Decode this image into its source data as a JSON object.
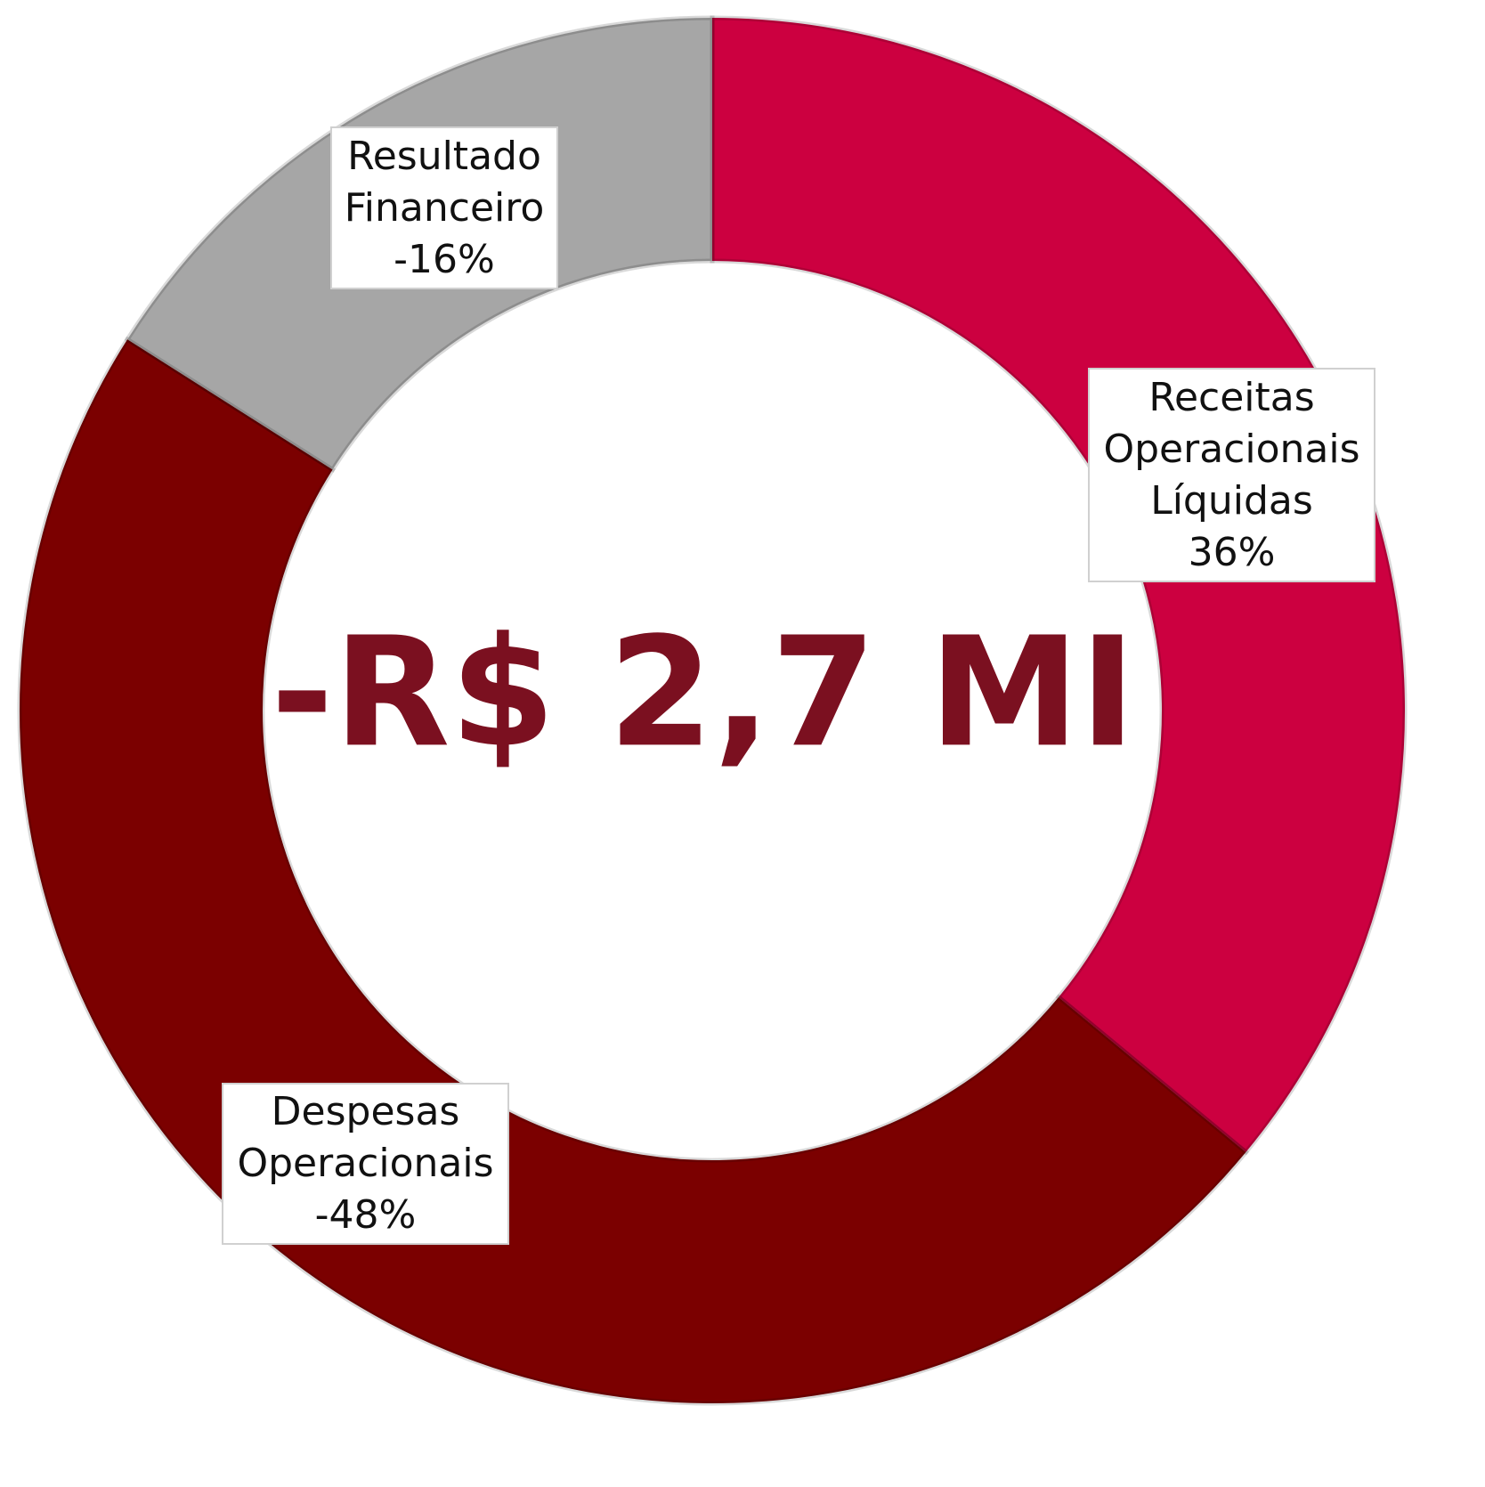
{
  "chart_data": {
    "type": "donut",
    "categories": [
      "Receitas Operacionais Líquidas",
      "Despesas Operacionais",
      "Resultado Financeiro"
    ],
    "values": [
      36,
      -48,
      -16
    ],
    "value_labels": [
      "36%",
      "-48%",
      "-16%"
    ],
    "colors": [
      "#cc0040",
      "#7b0000",
      "#a6a6a6"
    ],
    "center_label": "-R$ 2,7 MI"
  }
}
